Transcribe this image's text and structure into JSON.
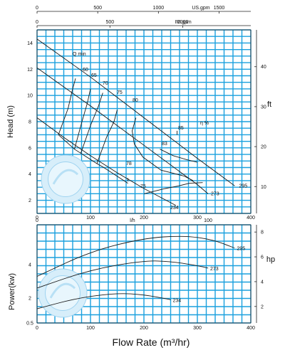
{
  "chart_data": [
    {
      "type": "line",
      "xlabel": "Flow Rate (m³/hr)",
      "ylabel": "Head (m)",
      "y2label": "ft",
      "x_ticks_m3h": [
        "0",
        "100",
        "200",
        "300",
        "400"
      ],
      "y_ticks_m": [
        "2",
        "4",
        "6",
        "8",
        "10",
        "12",
        "14"
      ],
      "y2_ticks_ft": [
        "10",
        "20",
        "30",
        "40"
      ],
      "top_axis_usgpm": {
        "unit": "US.gpm",
        "ticks": [
          "0",
          "500",
          "1000",
          "1500"
        ]
      },
      "top_axis_imgpm": {
        "unit": "IM.gpm",
        "ticks": [
          "0",
          "500",
          "1000"
        ]
      },
      "grid": true,
      "head_curves": [
        {
          "label": "295",
          "x": [
            0,
            100,
            200,
            300,
            370
          ],
          "y": [
            14.3,
            11.4,
            8.3,
            5.2,
            3.1
          ]
        },
        {
          "label": "273",
          "x": [
            0,
            100,
            200,
            300,
            320
          ],
          "y": [
            12.1,
            9.2,
            6.2,
            3.2,
            2.5
          ]
        },
        {
          "label": "234",
          "x": [
            0,
            50,
            100,
            150,
            200,
            260
          ],
          "y": [
            8.3,
            6.8,
            5.4,
            4.1,
            2.9,
            1.6
          ]
        }
      ],
      "min_flow_curve": {
        "label": "Q min",
        "x": [
          40,
          70,
          112,
          123,
          155,
          170
        ],
        "y": [
          7.0,
          5.9,
          4.8,
          4.55,
          3.7,
          3.3
        ]
      },
      "efficiency_curves": [
        {
          "label": "60",
          "x": [
            40,
            58,
            66,
            72
          ],
          "y": [
            7.0,
            9.0,
            10.4,
            11.3
          ]
        },
        {
          "label": "65",
          "x": [
            70,
            84,
            94,
            100
          ],
          "y": [
            5.9,
            8.0,
            9.4,
            10.5
          ]
        },
        {
          "label": "70",
          "x": [
            82,
            100,
            115,
            123
          ],
          "y": [
            5.6,
            7.7,
            9.2,
            10.2
          ]
        },
        {
          "label": "75",
          "x": [
            112,
            130,
            144,
            150
          ],
          "y": [
            4.8,
            6.8,
            8.0,
            8.9
          ]
        },
        {
          "label": "80",
          "x": [
            185,
            178,
            182,
            198,
            232,
            275,
            292
          ],
          "y": [
            8.3,
            7.3,
            6.3,
            5.3,
            4.3,
            3.85,
            3.5
          ]
        },
        {
          "label": "75",
          "x": [
            200,
            240,
            265,
            285,
            310
          ],
          "y": [
            2.5,
            2.9,
            3.1,
            3.3,
            3.35
          ]
        },
        {
          "label": "83",
          "x": [
            230,
            255,
            280,
            300
          ],
          "y": [
            5.9,
            5.4,
            5.1,
            4.9
          ]
        },
        {
          "label": "85",
          "x": [
            262,
            262
          ],
          "y": [
            7.3,
            7.0
          ]
        },
        {
          "label": "78",
          "x": [
            170,
            170
          ],
          "y": [
            3.7,
            3.45
          ]
        }
      ],
      "min_flow_label_values": [
        "60",
        "65",
        "70",
        "75",
        "80"
      ],
      "efficiency_symbol": "η %"
    },
    {
      "type": "line",
      "xlabel": "Flow Rate (m³/hr)",
      "ylabel": "Power(kw)",
      "y2label": "hp",
      "x_ticks_m3h": [
        "0",
        "100",
        "200",
        "300",
        "400"
      ],
      "y_ticks_kw": [
        "0.5",
        "2",
        "4"
      ],
      "y2_ticks_hp": [
        "2",
        "4",
        "6",
        "8"
      ],
      "top_axis_lh": {
        "unit": "l/h",
        "ticks": [
          "0",
          "100"
        ]
      },
      "grid": true,
      "power_curves": [
        {
          "label": "295",
          "x": [
            0,
            100,
            200,
            275,
            330,
            370
          ],
          "y": [
            3.3,
            4.8,
            5.6,
            5.75,
            5.5,
            5.0
          ]
        },
        {
          "label": "273",
          "x": [
            0,
            100,
            200,
            250,
            300,
            320
          ],
          "y": [
            2.6,
            3.7,
            4.25,
            4.2,
            3.95,
            3.8
          ]
        },
        {
          "label": "234",
          "x": [
            0,
            75,
            150,
            200,
            250
          ],
          "y": [
            1.35,
            2.0,
            2.3,
            2.2,
            1.9
          ]
        }
      ]
    }
  ]
}
